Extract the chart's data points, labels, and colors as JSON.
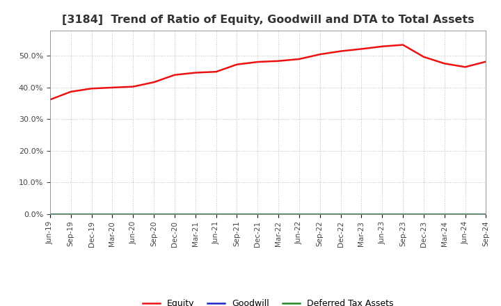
{
  "title": "[3184]  Trend of Ratio of Equity, Goodwill and DTA to Total Assets",
  "title_fontsize": 11.5,
  "title_color": "#333333",
  "labels": [
    "Jun-19",
    "Sep-19",
    "Dec-19",
    "Mar-20",
    "Jun-20",
    "Sep-20",
    "Dec-20",
    "Mar-21",
    "Jun-21",
    "Sep-21",
    "Dec-21",
    "Mar-22",
    "Jun-22",
    "Sep-22",
    "Dec-22",
    "Mar-23",
    "Jun-23",
    "Sep-23",
    "Dec-23",
    "Mar-24",
    "Jun-24",
    "Sep-24"
  ],
  "equity": [
    0.362,
    0.387,
    0.397,
    0.4,
    0.403,
    0.417,
    0.44,
    0.447,
    0.45,
    0.473,
    0.481,
    0.484,
    0.49,
    0.505,
    0.515,
    0.522,
    0.53,
    0.535,
    0.497,
    0.476,
    0.465,
    0.482
  ],
  "goodwill": [
    0.0,
    0.0,
    0.0,
    0.0,
    0.0,
    0.0,
    0.0,
    0.0,
    0.0,
    0.0,
    0.0,
    0.0,
    0.0,
    0.0,
    0.0,
    0.0,
    0.0,
    0.0,
    0.0,
    0.0,
    0.0,
    0.0
  ],
  "dta": [
    0.0,
    0.0,
    0.0,
    0.0,
    0.0,
    0.0,
    0.0,
    0.0,
    0.0,
    0.0,
    0.0,
    0.0,
    0.0,
    0.0,
    0.0,
    0.0,
    0.0,
    0.0,
    0.0,
    0.0,
    0.0,
    0.0
  ],
  "equity_color": "#ee1111",
  "goodwill_color": "#2222cc",
  "dta_color": "#228822",
  "ylim": [
    0.0,
    0.58
  ],
  "yticks": [
    0.0,
    0.1,
    0.2,
    0.3,
    0.4,
    0.5
  ],
  "background_color": "#ffffff",
  "plot_bg_color": "#ffffff",
  "grid_color": "#bbbbbb",
  "tick_color": "#444444",
  "legend_labels": [
    "Equity",
    "Goodwill",
    "Deferred Tax Assets"
  ]
}
